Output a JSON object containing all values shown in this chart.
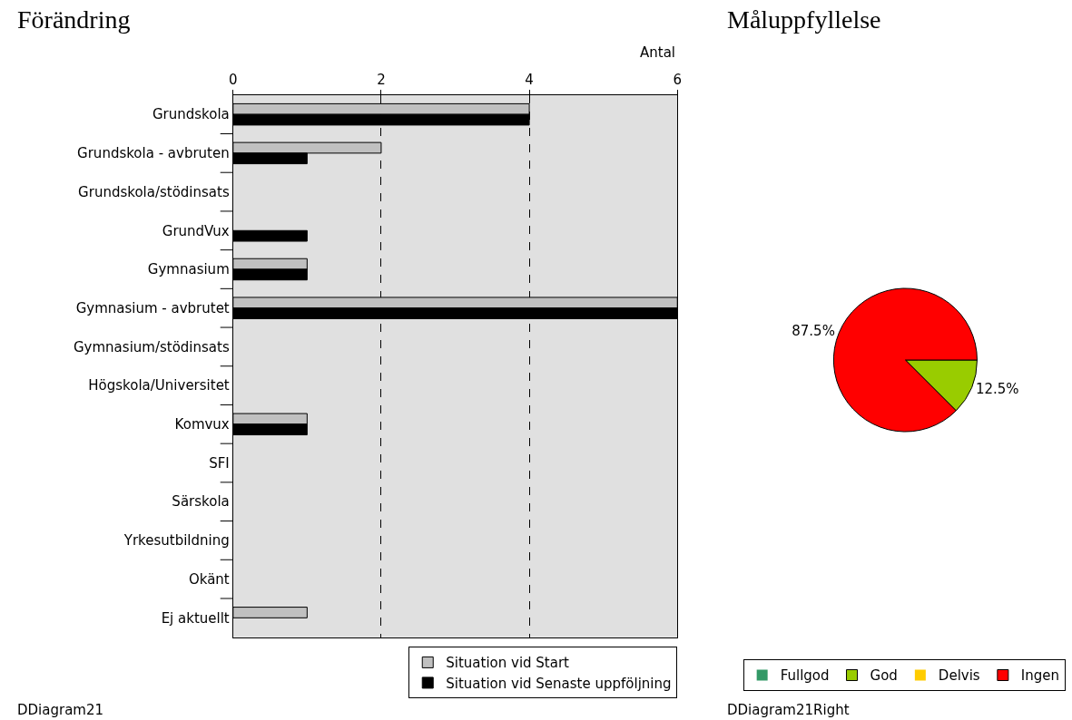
{
  "chart_data": [
    {
      "type": "bar",
      "orientation": "horizontal",
      "title": "Förändring",
      "xlabel": "Antal",
      "categories": [
        "Grundskola",
        "Grundskola - avbruten",
        "Grundskola/stödinsats",
        "GrundVux",
        "Gymnasium",
        "Gymnasium - avbrutet",
        "Gymnasium/stödinsats",
        "Högskola/Universitet",
        "Komvux",
        "SFI",
        "Särskola",
        "Yrkesutbildning",
        "Okänt",
        "Ej aktuellt"
      ],
      "series": [
        {
          "name": "Situation vid Start",
          "color": "#c0c0c0",
          "values": [
            4,
            2,
            null,
            null,
            1,
            6,
            null,
            null,
            1,
            null,
            null,
            null,
            null,
            1
          ]
        },
        {
          "name": "Situation vid Senaste uppföljning",
          "color": "#000000",
          "values": [
            4,
            1,
            null,
            1,
            1,
            6,
            null,
            null,
            1,
            null,
            null,
            null,
            null,
            null
          ]
        }
      ],
      "xlim": [
        0,
        6
      ],
      "xticks": [
        0,
        2,
        4,
        6
      ],
      "grid": "x",
      "legend": "bottom right",
      "annotations": [
        "DDiagram21"
      ]
    },
    {
      "type": "pie",
      "title": "Måluppfyllelse",
      "categories": [
        "Fullgod",
        "God",
        "Delvis",
        "Ingen"
      ],
      "values": [
        0,
        12.5,
        0,
        87.5
      ],
      "colors": [
        "#339966",
        "#99cc00",
        "#ffcc00",
        "#ff0000"
      ],
      "value_labels": [
        null,
        "12.5%",
        null,
        "87.5%"
      ],
      "legend": "bottom right",
      "annotations": [
        "DDiagram21Right"
      ]
    }
  ]
}
